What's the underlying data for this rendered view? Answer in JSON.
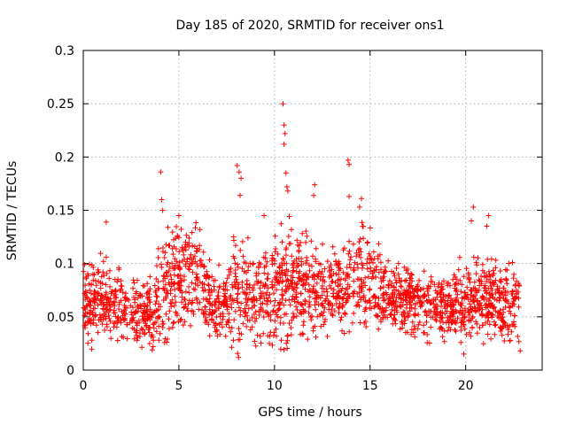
{
  "chart_data": {
    "type": "scatter",
    "title": "Day 185 of 2020, SRMTID for receiver ons1",
    "xlabel": "GPS time / hours",
    "ylabel": "SRMTID / TECUs",
    "xlim": [
      0,
      24
    ],
    "ylim": [
      0,
      0.3
    ],
    "xticks": [
      0,
      5,
      10,
      15,
      20
    ],
    "xtick_labels": [
      "0",
      "5",
      "10",
      "15",
      "20"
    ],
    "yticks": [
      0,
      0.05,
      0.1,
      0.15,
      0.2,
      0.25,
      0.3
    ],
    "ytick_labels": [
      "0",
      "0.05",
      "0.1",
      "0.15",
      "0.2",
      "0.25",
      "0.3"
    ],
    "grid": true,
    "marker": "+",
    "color": "#ff0000",
    "series": [
      {
        "name": "SRMTID",
        "envelope": {
          "x": [
            0,
            1,
            2,
            3,
            3.7,
            4.1,
            5,
            6,
            6.6,
            7.2,
            8,
            9,
            10,
            10.5,
            11,
            12,
            13,
            14,
            15,
            16,
            17,
            18,
            19,
            20,
            21,
            22,
            22.8
          ],
          "y_mean": [
            0.062,
            0.063,
            0.06,
            0.055,
            0.052,
            0.078,
            0.085,
            0.092,
            0.065,
            0.058,
            0.075,
            0.068,
            0.075,
            0.082,
            0.078,
            0.078,
            0.072,
            0.085,
            0.088,
            0.068,
            0.065,
            0.065,
            0.06,
            0.065,
            0.068,
            0.062,
            0.063
          ],
          "y_spread": [
            0.02,
            0.022,
            0.02,
            0.018,
            0.018,
            0.03,
            0.028,
            0.025,
            0.02,
            0.018,
            0.03,
            0.025,
            0.028,
            0.035,
            0.03,
            0.025,
            0.022,
            0.028,
            0.025,
            0.02,
            0.02,
            0.02,
            0.018,
            0.02,
            0.022,
            0.02,
            0.02
          ],
          "x_end": 22.8,
          "count": 2200
        },
        "peaks": [
          {
            "x": 4.05,
            "y": 0.186
          },
          {
            "x": 4.1,
            "y": 0.16
          },
          {
            "x": 4.15,
            "y": 0.15
          },
          {
            "x": 8.05,
            "y": 0.192
          },
          {
            "x": 8.15,
            "y": 0.186
          },
          {
            "x": 8.25,
            "y": 0.18
          },
          {
            "x": 8.2,
            "y": 0.164
          },
          {
            "x": 10.45,
            "y": 0.25
          },
          {
            "x": 10.5,
            "y": 0.23
          },
          {
            "x": 10.55,
            "y": 0.222
          },
          {
            "x": 10.5,
            "y": 0.212
          },
          {
            "x": 10.6,
            "y": 0.185
          },
          {
            "x": 10.65,
            "y": 0.172
          },
          {
            "x": 10.7,
            "y": 0.168
          },
          {
            "x": 12.1,
            "y": 0.174
          },
          {
            "x": 12.05,
            "y": 0.164
          },
          {
            "x": 13.85,
            "y": 0.197
          },
          {
            "x": 13.9,
            "y": 0.193
          },
          {
            "x": 13.9,
            "y": 0.163
          },
          {
            "x": 14.55,
            "y": 0.161
          },
          {
            "x": 14.45,
            "y": 0.153
          },
          {
            "x": 5.0,
            "y": 0.145
          },
          {
            "x": 6.1,
            "y": 0.132
          },
          {
            "x": 1.2,
            "y": 0.139
          },
          {
            "x": 20.4,
            "y": 0.153
          },
          {
            "x": 20.3,
            "y": 0.14
          },
          {
            "x": 21.2,
            "y": 0.145
          },
          {
            "x": 21.1,
            "y": 0.135
          },
          {
            "x": 9.45,
            "y": 0.145
          },
          {
            "x": 19.9,
            "y": 0.015
          },
          {
            "x": 22.85,
            "y": 0.018
          },
          {
            "x": 3.65,
            "y": 0.022
          },
          {
            "x": 0.45,
            "y": 0.028
          }
        ]
      }
    ]
  }
}
